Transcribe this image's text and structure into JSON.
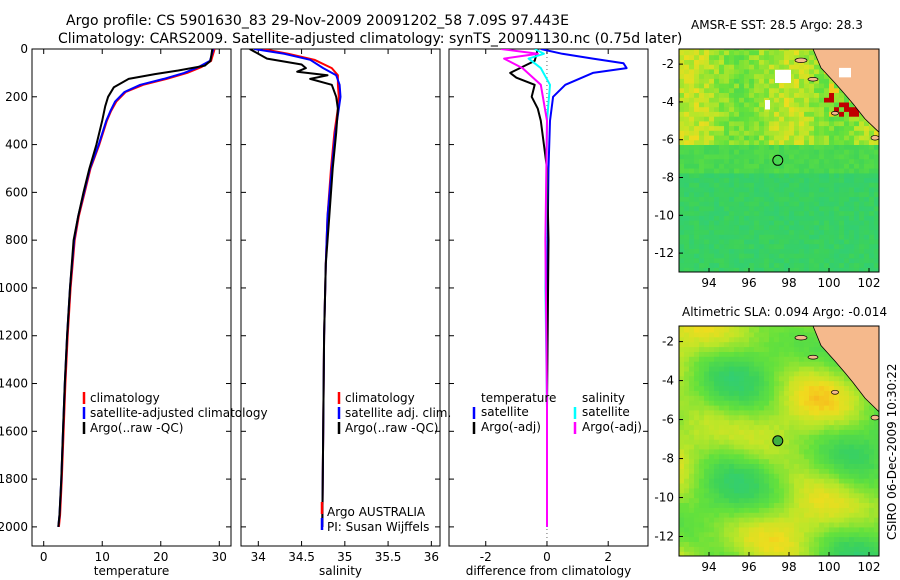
{
  "header": {
    "line1": "Argo profile: CS 5901630_83 29-Nov-2009 20091202_58 7.09S 97.443E",
    "line2": "Climatology: CARS2009. Satellite-adjusted climatology: synTS_20091130.nc (0.75d later)"
  },
  "credit": "CSIRO 06-Dec-2009 10:30:22",
  "colors": {
    "climatology": "#ff0000",
    "satellite": "#0000ff",
    "argo": "#000000",
    "satellite_salt": "#00ffff",
    "argo_salt": "#ff00ff",
    "land": "#f5b98c"
  },
  "chart_data": [
    {
      "type": "line",
      "xlabel": "temperature",
      "ylabel": "",
      "xlim": [
        -2,
        32
      ],
      "ylim": [
        2080,
        0
      ],
      "xticks": [
        0,
        10,
        20,
        30
      ],
      "yticks": [
        0,
        200,
        400,
        600,
        800,
        1000,
        1200,
        1400,
        1600,
        1800,
        2000
      ],
      "legend": {
        "position": "lower-right",
        "entries": [
          "climatology",
          "satellite-adjusted climatology",
          "Argo(..raw -QC)"
        ]
      },
      "series": [
        {
          "name": "climatology",
          "color": "#ff0000",
          "x": [
            29.2,
            28.6,
            27.0,
            24.5,
            21.0,
            17.0,
            14.0,
            12.4,
            11.5,
            10.8,
            9.5,
            8.0,
            7.0,
            6.0,
            5.3,
            4.6,
            4.1,
            3.7,
            3.4,
            3.1,
            2.8,
            2.6
          ],
          "y": [
            0,
            50,
            75,
            100,
            125,
            150,
            180,
            220,
            260,
            300,
            400,
            500,
            600,
            700,
            800,
            1000,
            1200,
            1400,
            1600,
            1800,
            1950,
            2000
          ]
        },
        {
          "name": "satellite-adjusted climatology",
          "color": "#0000ff",
          "x": [
            29.0,
            28.4,
            26.5,
            24.0,
            20.5,
            16.5,
            13.8,
            12.2,
            11.4,
            10.7,
            9.4,
            7.9,
            6.9,
            5.9,
            5.2,
            4.5,
            4.0,
            3.6,
            3.3,
            3.0,
            2.7,
            2.5
          ],
          "y": [
            0,
            50,
            75,
            100,
            125,
            150,
            180,
            220,
            260,
            300,
            400,
            500,
            600,
            700,
            800,
            1000,
            1200,
            1400,
            1600,
            1800,
            1950,
            2000
          ]
        },
        {
          "name": "Argo(..raw -QC)",
          "color": "#000000",
          "x": [
            28.8,
            28.5,
            27.5,
            23.0,
            19.0,
            14.5,
            12.0,
            11.0,
            10.5,
            10.0,
            9.0,
            7.8,
            6.8,
            5.9,
            5.1,
            4.5,
            4.0,
            3.6,
            3.3,
            3.0,
            2.7,
            2.5
          ],
          "y": [
            0,
            50,
            70,
            90,
            105,
            125,
            160,
            200,
            240,
            300,
            400,
            500,
            600,
            700,
            800,
            1000,
            1200,
            1400,
            1600,
            1800,
            1950,
            2000
          ]
        }
      ]
    },
    {
      "type": "line",
      "xlabel": "salinity",
      "xlim": [
        33.8,
        36.1
      ],
      "ylim": [
        2080,
        0
      ],
      "xticks": [
        34,
        34.5,
        35,
        35.5,
        36
      ],
      "xticklabels": [
        "34",
        "34.5",
        "35",
        "35.5",
        "36"
      ],
      "legend": {
        "position": "lower-right",
        "entries": [
          "climatology",
          "satellite adj. clim.",
          "Argo(..raw -QC)"
        ]
      },
      "annotations": [
        "Argo AUSTRALIA",
        "PI: Susan Wijffels"
      ],
      "series": [
        {
          "name": "climatology",
          "color": "#ff0000",
          "x": [
            34.05,
            34.35,
            34.65,
            34.85,
            34.92,
            34.92,
            34.93,
            34.92,
            34.88,
            34.84,
            34.8,
            34.78,
            34.76,
            34.75,
            34.74
          ],
          "y": [
            0,
            20,
            45,
            80,
            110,
            150,
            200,
            250,
            350,
            500,
            700,
            900,
            1200,
            1600,
            2000
          ]
        },
        {
          "name": "satellite adj. clim.",
          "color": "#0000ff",
          "x": [
            33.95,
            34.3,
            34.6,
            34.75,
            34.9,
            34.94,
            34.95,
            34.93,
            34.89,
            34.85,
            34.8,
            34.78,
            34.76,
            34.75,
            34.74
          ],
          "y": [
            0,
            20,
            45,
            80,
            110,
            150,
            200,
            250,
            350,
            500,
            700,
            900,
            1200,
            1600,
            2000
          ]
        },
        {
          "name": "Argo(..raw -QC)",
          "color": "#000000",
          "x": [
            33.9,
            34.1,
            34.5,
            34.55,
            34.45,
            34.8,
            34.6,
            34.85,
            34.9,
            34.92,
            34.9,
            34.86,
            34.82,
            34.78,
            34.76,
            34.75,
            34.74
          ],
          "y": [
            0,
            40,
            65,
            80,
            95,
            110,
            125,
            150,
            200,
            250,
            350,
            500,
            700,
            900,
            1200,
            1600,
            2000
          ]
        }
      ]
    },
    {
      "type": "line",
      "xlabel": "difference from climatology",
      "xlim": [
        -3.2,
        3.3
      ],
      "ylim": [
        2080,
        0
      ],
      "xticks": [
        -2,
        0,
        2
      ],
      "legend": {
        "position": "lower-right",
        "groups": [
          {
            "title": "temperature",
            "entries": [
              "satellite",
              "Argo(-adj)"
            ]
          },
          {
            "title": "salinity",
            "entries": [
              "satellite",
              "Argo(-adj)"
            ]
          }
        ]
      },
      "series": [
        {
          "name": "temperature satellite",
          "color": "#0000ff",
          "x": [
            -0.2,
            0.5,
            1.5,
            2.5,
            2.6,
            1.5,
            0.6,
            0.2,
            0.1,
            0.05,
            0.0,
            0.0
          ],
          "y": [
            0,
            20,
            40,
            60,
            80,
            100,
            150,
            200,
            300,
            500,
            1000,
            2000
          ]
        },
        {
          "name": "temperature Argo(-adj)",
          "color": "#000000",
          "x": [
            -0.3,
            -0.4,
            -1.2,
            -1.0,
            -0.4,
            -0.5,
            -0.3,
            -0.2,
            -0.1,
            0.0,
            0.05,
            0.0,
            0.0
          ],
          "y": [
            0,
            50,
            100,
            120,
            150,
            200,
            250,
            300,
            400,
            500,
            800,
            1500,
            2000
          ]
        },
        {
          "name": "salinity satellite",
          "color": "#00ffff",
          "x": [
            -0.4,
            -0.1,
            -0.6,
            -0.2,
            0.1,
            0.0,
            -0.05,
            0.0,
            0.0
          ],
          "y": [
            0,
            20,
            40,
            80,
            150,
            300,
            1000,
            1500,
            2000
          ]
        },
        {
          "name": "salinity Argo(-adj)",
          "color": "#ff00ff",
          "x": [
            -1.5,
            -0.3,
            -1.4,
            -0.8,
            -0.2,
            0.0,
            -0.05,
            0.0,
            0.0
          ],
          "y": [
            0,
            20,
            40,
            80,
            150,
            300,
            800,
            1500,
            2000
          ]
        }
      ]
    },
    {
      "type": "heatmap",
      "title": "AMSR-E SST: 28.5 Argo: 28.3",
      "xlim": [
        92.5,
        102.5
      ],
      "ylim": [
        -13,
        -1.2
      ],
      "xticks": [
        94,
        96,
        98,
        100,
        102
      ],
      "yticks": [
        -2,
        -4,
        -6,
        -8,
        -10,
        -12
      ],
      "profile_marker": [
        97.44,
        -7.09
      ]
    },
    {
      "type": "heatmap",
      "title": "Altimetric SLA: 0.094 Argo: -0.014",
      "xlim": [
        92.5,
        102.5
      ],
      "ylim": [
        -13,
        -1.2
      ],
      "xticks": [
        94,
        96,
        98,
        100,
        102
      ],
      "yticks": [
        -2,
        -4,
        -6,
        -8,
        -10,
        -12
      ],
      "profile_marker": [
        97.44,
        -7.09
      ]
    }
  ]
}
